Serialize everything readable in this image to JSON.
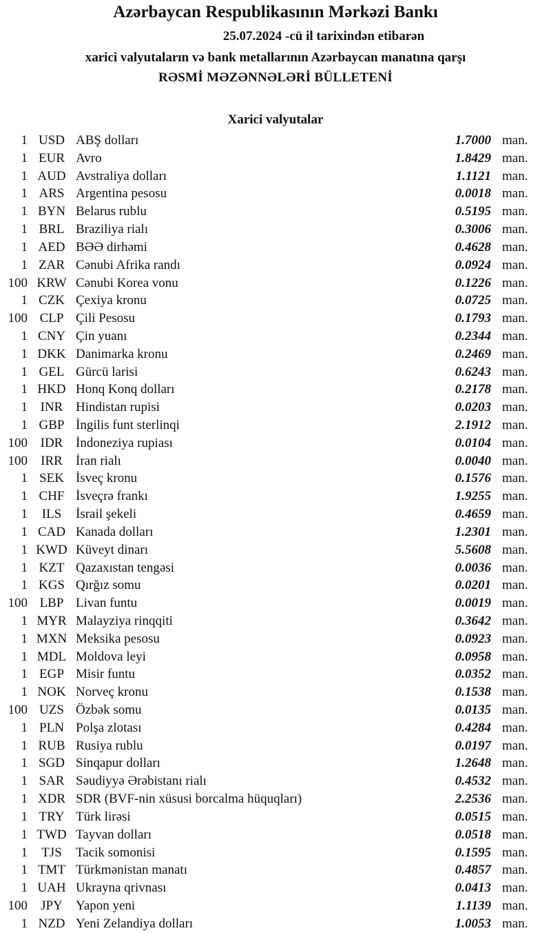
{
  "header": {
    "title": "Azərbaycan Respublikasının Mərkəzi Bankı",
    "date_line": "25.07.2024  -cü il tarixindən etibarən",
    "subtitle": "xarici valyutaların və bank metallarının Azərbaycan manatına qarşı",
    "bulletin": "RƏSMİ MƏZƏNNƏLƏRİ BÜLLETENİ"
  },
  "section_title": "Xarici valyutalar",
  "unit_label": "man.",
  "rates": [
    {
      "amount": "1",
      "code": "USD",
      "name": "ABŞ dolları",
      "rate": "1.7000"
    },
    {
      "amount": "1",
      "code": "EUR",
      "name": "Avro",
      "rate": "1.8429"
    },
    {
      "amount": "1",
      "code": "AUD",
      "name": "Avstraliya dolları",
      "rate": "1.1121"
    },
    {
      "amount": "1",
      "code": "ARS",
      "name": "Argentina pesosu",
      "rate": "0.0018"
    },
    {
      "amount": "1",
      "code": "BYN",
      "name": "Belarus rublu",
      "rate": "0.5195"
    },
    {
      "amount": "1",
      "code": "BRL",
      "name": "Braziliya rialı",
      "rate": "0.3006"
    },
    {
      "amount": "1",
      "code": "AED",
      "name": "BƏƏ dirhəmi",
      "rate": "0.4628"
    },
    {
      "amount": "1",
      "code": "ZAR",
      "name": "Cənubi Afrika randı",
      "rate": "0.0924"
    },
    {
      "amount": "100",
      "code": "KRW",
      "name": "Cənubi Korea vonu",
      "rate": "0.1226"
    },
    {
      "amount": "1",
      "code": "CZK",
      "name": "Çexiya kronu",
      "rate": "0.0725"
    },
    {
      "amount": "100",
      "code": "CLP",
      "name": "Çili Pesosu",
      "rate": "0.1793"
    },
    {
      "amount": "1",
      "code": "CNY",
      "name": "Çin yuanı",
      "rate": "0.2344"
    },
    {
      "amount": "1",
      "code": "DKK",
      "name": "Danimarka kronu",
      "rate": "0.2469"
    },
    {
      "amount": "1",
      "code": "GEL",
      "name": "Gürcü larisi",
      "rate": "0.6243"
    },
    {
      "amount": "1",
      "code": "HKD",
      "name": "Honq Konq dolları",
      "rate": "0.2178"
    },
    {
      "amount": "1",
      "code": "INR",
      "name": "Hindistan rupisi",
      "rate": "0.0203"
    },
    {
      "amount": "1",
      "code": "GBP",
      "name": "İngilis funt sterlinqi",
      "rate": "2.1912"
    },
    {
      "amount": "100",
      "code": "IDR",
      "name": "İndoneziya rupiası",
      "rate": "0.0104"
    },
    {
      "amount": "100",
      "code": "IRR",
      "name": "İran rialı",
      "rate": "0.0040"
    },
    {
      "amount": "1",
      "code": "SEK",
      "name": "İsveç kronu",
      "rate": "0.1576"
    },
    {
      "amount": "1",
      "code": "CHF",
      "name": "İsveçrə frankı",
      "rate": "1.9255"
    },
    {
      "amount": "1",
      "code": "ILS",
      "name": "İsrail şekeli",
      "rate": "0.4659"
    },
    {
      "amount": "1",
      "code": "CAD",
      "name": "Kanada dolları",
      "rate": "1.2301"
    },
    {
      "amount": "1",
      "code": "KWD",
      "name": "Küveyt dinarı",
      "rate": "5.5608"
    },
    {
      "amount": "1",
      "code": "KZT",
      "name": "Qazaxıstan tengəsi",
      "rate": "0.0036"
    },
    {
      "amount": "1",
      "code": "KGS",
      "name": "Qırğız somu",
      "rate": "0.0201"
    },
    {
      "amount": "100",
      "code": "LBP",
      "name": "Livan funtu",
      "rate": "0.0019"
    },
    {
      "amount": "1",
      "code": "MYR",
      "name": "Malayziya rinqqiti",
      "rate": "0.3642"
    },
    {
      "amount": "1",
      "code": "MXN",
      "name": "Meksika pesosu",
      "rate": "0.0923"
    },
    {
      "amount": "1",
      "code": "MDL",
      "name": "Moldova leyi",
      "rate": "0.0958"
    },
    {
      "amount": "1",
      "code": "EGP",
      "name": "Misir funtu",
      "rate": "0.0352"
    },
    {
      "amount": "1",
      "code": "NOK",
      "name": "Norveç kronu",
      "rate": "0.1538"
    },
    {
      "amount": "100",
      "code": "UZS",
      "name": "Özbək somu",
      "rate": "0.0135"
    },
    {
      "amount": "1",
      "code": "PLN",
      "name": "Polşa zlotası",
      "rate": "0.4284"
    },
    {
      "amount": "1",
      "code": "RUB",
      "name": "Rusiya rublu",
      "rate": "0.0197"
    },
    {
      "amount": "1",
      "code": "SGD",
      "name": "Sinqapur dolları",
      "rate": "1.2648"
    },
    {
      "amount": "1",
      "code": "SAR",
      "name": "Səudiyyə Ərəbistanı rialı",
      "rate": "0.4532"
    },
    {
      "amount": "1",
      "code": "XDR",
      "name": "SDR (BVF-nin xüsusi borcalma hüquqları)",
      "rate": "2.2536"
    },
    {
      "amount": "1",
      "code": "TRY",
      "name": "Türk lirəsi",
      "rate": "0.0515"
    },
    {
      "amount": "1",
      "code": "TWD",
      "name": "Tayvan dolları",
      "rate": "0.0518"
    },
    {
      "amount": "1",
      "code": "TJS",
      "name": "Tacik somonisi",
      "rate": "0.1595"
    },
    {
      "amount": "1",
      "code": "TMT",
      "name": "Türkmənistan manatı",
      "rate": "0.4857"
    },
    {
      "amount": "1",
      "code": "UAH",
      "name": "Ukrayna qrivnası",
      "rate": "0.0413"
    },
    {
      "amount": "100",
      "code": "JPY",
      "name": "Yapon yeni",
      "rate": "1.1139"
    },
    {
      "amount": "1",
      "code": "NZD",
      "name": "Yeni Zelandiya dolları",
      "rate": "1.0053"
    }
  ]
}
